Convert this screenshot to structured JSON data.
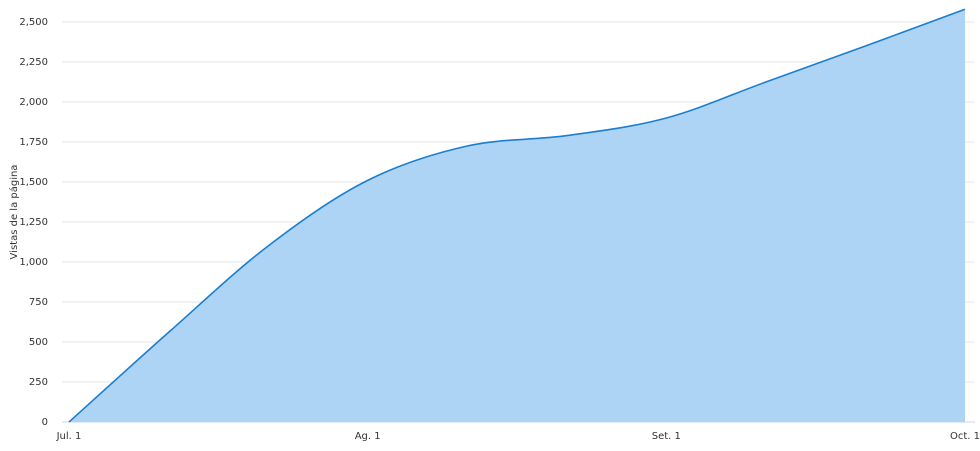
{
  "chart_data": {
    "type": "area",
    "y_label": "Vistas de la página",
    "categories": [
      "Jul. 1",
      null,
      null,
      "Ag. 1",
      null,
      null,
      "Set. 1",
      null,
      null,
      "Oct. 1"
    ],
    "values": [
      0,
      560,
      1100,
      1510,
      1725,
      1790,
      1900,
      2125,
      2350,
      2580
    ],
    "color": "#1a7fd0",
    "fill": "#aed4f5",
    "ylim": [
      0,
      2500
    ],
    "yticks": [
      0,
      250,
      500,
      750,
      {
        "value": 1000,
        "label": "1,000"
      },
      {
        "value": 1250,
        "label": "1,250"
      },
      {
        "value": 1500,
        "label": "1,500"
      },
      {
        "value": 1750,
        "label": "1,750"
      },
      {
        "value": 2000,
        "label": "2,000"
      },
      {
        "value": 2250,
        "label": "2,250"
      },
      {
        "value": 2500,
        "label": "2,500"
      }
    ],
    "grid": true
  }
}
